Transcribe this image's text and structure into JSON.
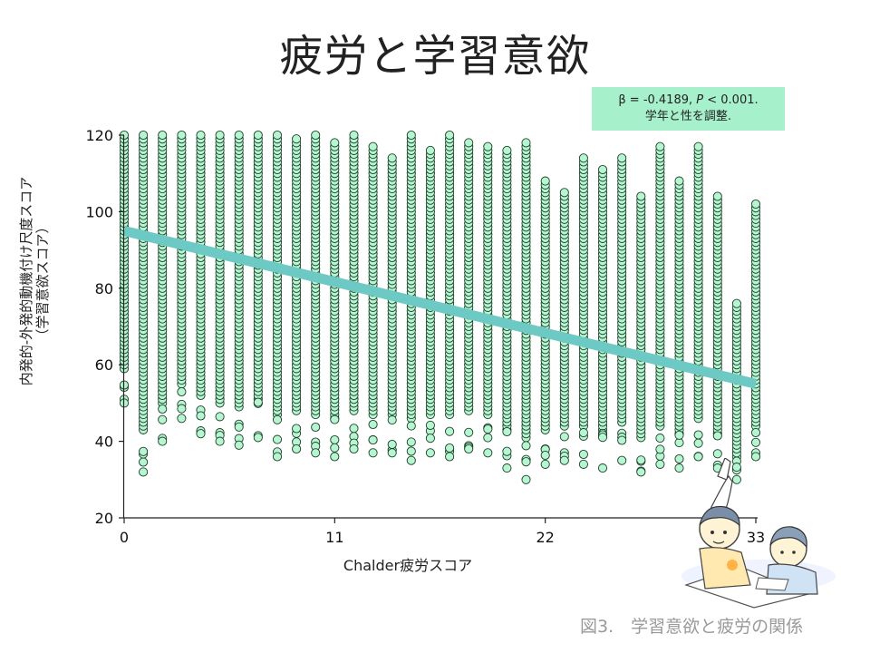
{
  "title": "疲労と学習意欲",
  "stat": {
    "beta": "β = -0.4189, ",
    "p_letter": "P",
    "p_value": " < 0.001.",
    "note": "学年と性を調整."
  },
  "caption": "図3.　学習意欲と疲労の関係",
  "chart_data": {
    "type": "scatter",
    "title": "疲労と学習意欲",
    "xlabel": "Chalder疲労スコア",
    "ylabel": [
      "内発的-外発的動機付け尺度スコア",
      "（学習意欲スコア）"
    ],
    "xlim": [
      0,
      33
    ],
    "ylim": [
      20,
      120
    ],
    "x_ticks": [
      0,
      11,
      22,
      33
    ],
    "y_ticks": [
      20,
      40,
      60,
      80,
      100,
      120
    ],
    "grid": false,
    "point_color": "#b5f5cf",
    "line_color": "#6cc9c4",
    "regression": {
      "x": [
        0,
        33
      ],
      "y": [
        95,
        55
      ]
    },
    "column_ranges": [
      {
        "x": 0,
        "ymin": 50,
        "ymax": 120
      },
      {
        "x": 1,
        "ymin": 32,
        "ymax": 120
      },
      {
        "x": 2,
        "ymin": 40,
        "ymax": 120
      },
      {
        "x": 3,
        "ymin": 46,
        "ymax": 120
      },
      {
        "x": 4,
        "ymin": 42,
        "ymax": 120
      },
      {
        "x": 5,
        "ymin": 40,
        "ymax": 120
      },
      {
        "x": 6,
        "ymin": 39,
        "ymax": 120
      },
      {
        "x": 7,
        "ymin": 41,
        "ymax": 120
      },
      {
        "x": 8,
        "ymin": 36,
        "ymax": 120
      },
      {
        "x": 9,
        "ymin": 38,
        "ymax": 119
      },
      {
        "x": 10,
        "ymin": 37,
        "ymax": 120
      },
      {
        "x": 11,
        "ymin": 36,
        "ymax": 118
      },
      {
        "x": 12,
        "ymin": 38,
        "ymax": 120
      },
      {
        "x": 13,
        "ymin": 37,
        "ymax": 117
      },
      {
        "x": 14,
        "ymin": 37,
        "ymax": 114
      },
      {
        "x": 15,
        "ymin": 35,
        "ymax": 120
      },
      {
        "x": 16,
        "ymin": 37,
        "ymax": 116
      },
      {
        "x": 17,
        "ymin": 36,
        "ymax": 120
      },
      {
        "x": 18,
        "ymin": 38,
        "ymax": 118
      },
      {
        "x": 19,
        "ymin": 37,
        "ymax": 117
      },
      {
        "x": 20,
        "ymin": 33,
        "ymax": 116
      },
      {
        "x": 21,
        "ymin": 30,
        "ymax": 118
      },
      {
        "x": 22,
        "ymin": 34,
        "ymax": 108
      },
      {
        "x": 23,
        "ymin": 35,
        "ymax": 105
      },
      {
        "x": 24,
        "ymin": 34,
        "ymax": 114
      },
      {
        "x": 25,
        "ymin": 33,
        "ymax": 111
      },
      {
        "x": 26,
        "ymin": 35,
        "ymax": 114
      },
      {
        "x": 27,
        "ymin": 32,
        "ymax": 104
      },
      {
        "x": 28,
        "ymin": 34,
        "ymax": 117
      },
      {
        "x": 29,
        "ymin": 33,
        "ymax": 108
      },
      {
        "x": 30,
        "ymin": 36,
        "ymax": 117
      },
      {
        "x": 31,
        "ymin": 33,
        "ymax": 104
      },
      {
        "x": 32,
        "ymin": 30,
        "ymax": 76
      },
      {
        "x": 33,
        "ymin": 36,
        "ymax": 102
      }
    ]
  }
}
